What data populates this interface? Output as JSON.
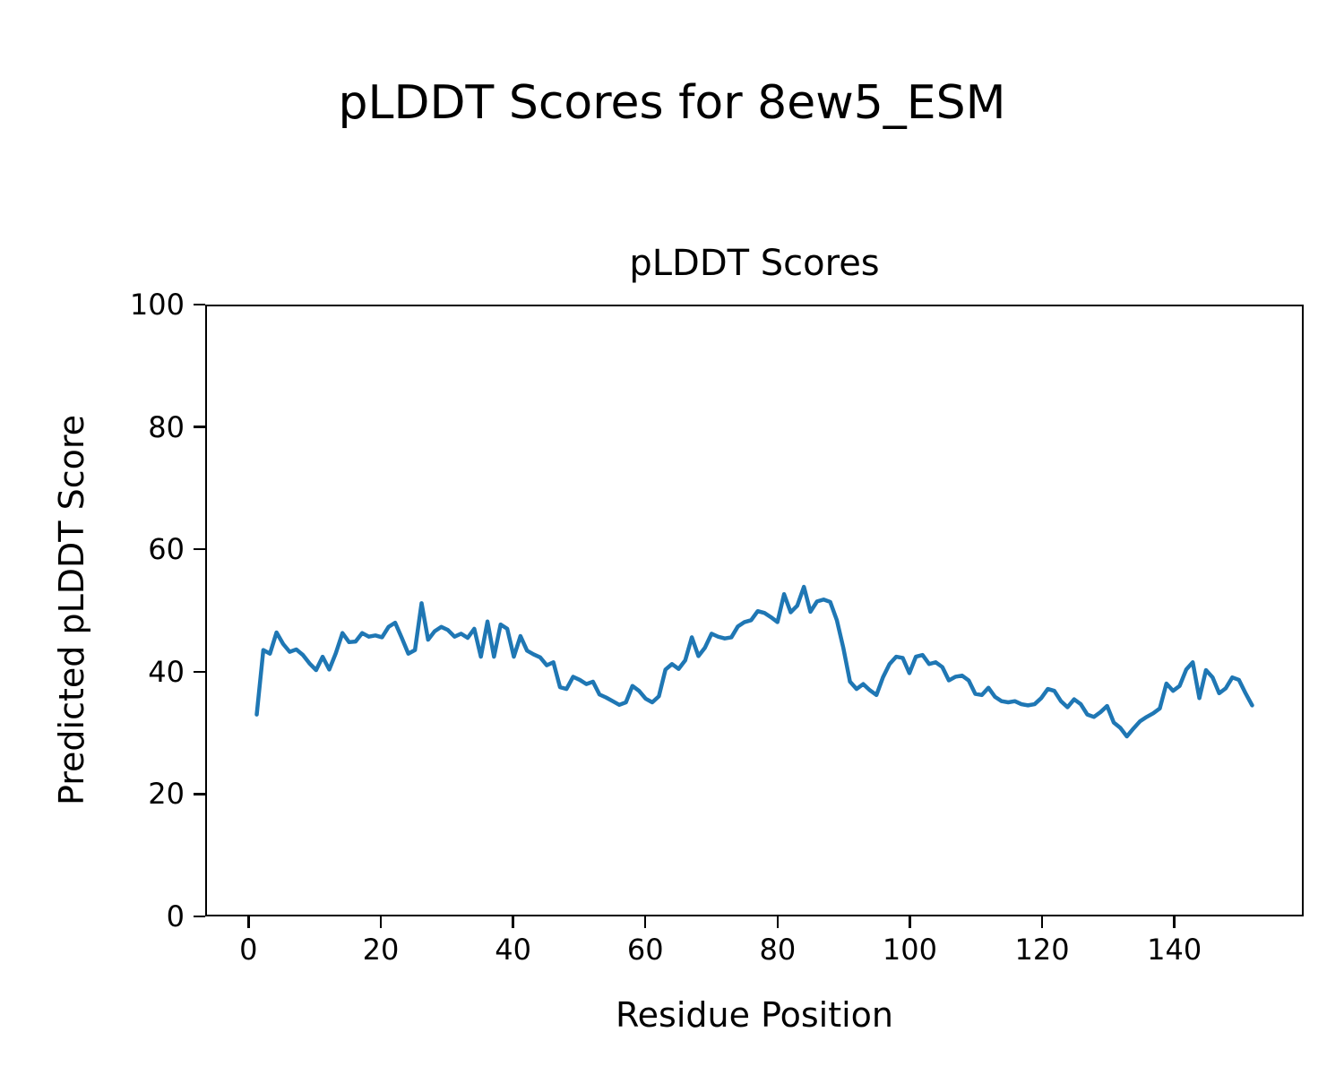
{
  "suptitle": "pLDDT Scores for 8ew5_ESM",
  "chart_data": {
    "type": "line",
    "title": "pLDDT Scores",
    "xlabel": "Residue Position",
    "ylabel": "Predicted pLDDT Score",
    "xlim": [
      -6.55,
      159.55
    ],
    "ylim": [
      0,
      100
    ],
    "xticks": [
      0,
      20,
      40,
      60,
      80,
      100,
      120,
      140
    ],
    "yticks": [
      0,
      20,
      40,
      60,
      80,
      100
    ],
    "grid": false,
    "legend": null,
    "line_color": "#1f77b4",
    "x_start": 1,
    "x_step": 1,
    "values": [
      32.9,
      43.5,
      42.9,
      46.4,
      44.5,
      43.2,
      43.6,
      42.7,
      41.3,
      40.2,
      42.4,
      40.3,
      43.0,
      46.3,
      44.8,
      44.9,
      46.3,
      45.7,
      45.9,
      45.6,
      47.3,
      48.0,
      45.5,
      42.9,
      43.5,
      51.2,
      45.2,
      46.6,
      47.3,
      46.8,
      45.7,
      46.2,
      45.5,
      47.0,
      42.4,
      48.2,
      42.4,
      47.7,
      47.0,
      42.4,
      45.8,
      43.4,
      42.8,
      42.3,
      41.0,
      41.5,
      37.4,
      37.1,
      39.1,
      38.6,
      37.9,
      38.3,
      36.2,
      35.7,
      35.1,
      34.5,
      34.9,
      37.6,
      36.8,
      35.5,
      34.9,
      35.9,
      40.3,
      41.2,
      40.4,
      41.8,
      45.6,
      42.5,
      43.9,
      46.2,
      45.7,
      45.4,
      45.6,
      47.4,
      48.1,
      48.4,
      49.9,
      49.6,
      48.9,
      48.1,
      52.7,
      49.7,
      50.8,
      53.9,
      49.8,
      51.5,
      51.8,
      51.4,
      48.4,
      43.8,
      38.3,
      37.1,
      37.9,
      36.9,
      36.1,
      39.0,
      41.2,
      42.4,
      42.2,
      39.7,
      42.4,
      42.7,
      41.2,
      41.5,
      40.7,
      38.5,
      39.1,
      39.3,
      38.5,
      36.3,
      36.1,
      37.3,
      35.8,
      35.1,
      34.9,
      35.1,
      34.6,
      34.4,
      34.6,
      35.6,
      37.1,
      36.8,
      35.1,
      34.1,
      35.4,
      34.6,
      32.9,
      32.5,
      33.3,
      34.3,
      31.6,
      30.7,
      29.3,
      30.6,
      31.8,
      32.5,
      33.1,
      33.9,
      38.0,
      36.8,
      37.6,
      40.3,
      41.5,
      35.6,
      40.2,
      39.0,
      36.4,
      37.2,
      39.0,
      38.6,
      36.4,
      34.4
    ]
  }
}
